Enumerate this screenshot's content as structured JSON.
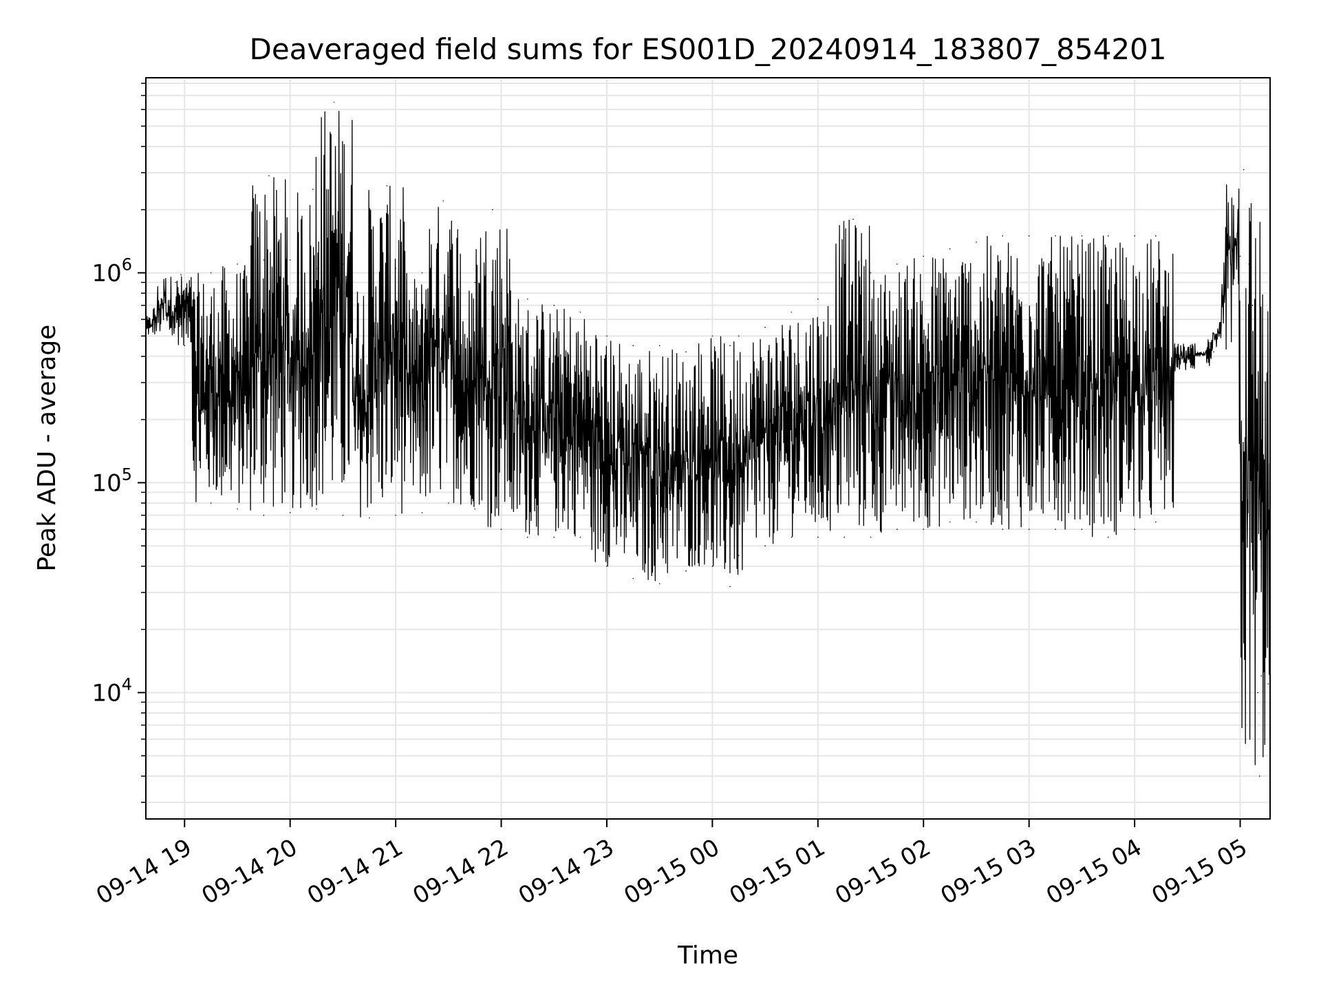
{
  "chart_data": {
    "type": "line",
    "title": "Deaveraged field sums for ES001D_20240914_183807_854201",
    "xlabel": "Time",
    "ylabel": "Peak ADU - average",
    "yscale": "log",
    "ylim": [
      2500,
      8500000
    ],
    "xlim": [
      "09-14 18:38",
      "09-15 05:17"
    ],
    "grid": true,
    "x_ticks": [
      "09-14 19",
      "09-14 20",
      "09-14 21",
      "09-14 22",
      "09-14 23",
      "09-15 00",
      "09-15 01",
      "09-15 02",
      "09-15 03",
      "09-15 04",
      "09-15 05"
    ],
    "y_ticks": [
      {
        "value": 10000,
        "base": "10",
        "exp": "4"
      },
      {
        "value": 100000,
        "base": "10",
        "exp": "5"
      },
      {
        "value": 1000000,
        "base": "10",
        "exp": "6"
      }
    ],
    "line_color": "#000000",
    "series": [
      {
        "name": "",
        "points": [
          [
            "09-14 18:38",
            500000
          ],
          [
            "09-14 18:45",
            620000
          ],
          [
            "09-14 18:52",
            700000
          ],
          [
            "09-14 18:55",
            900000
          ],
          [
            "09-14 18:58",
            980000
          ],
          [
            "09-14 19:00",
            450000
          ],
          [
            "09-14 19:15",
            1000000
          ],
          [
            "09-14 19:15",
            80000
          ],
          [
            "09-14 19:30",
            1100000
          ],
          [
            "09-14 19:30",
            75000
          ],
          [
            "09-14 19:45",
            1150000
          ],
          [
            "09-14 19:45",
            70000
          ],
          [
            "09-14 19:48",
            2900000
          ],
          [
            "09-14 20:00",
            1150000
          ],
          [
            "09-14 20:00",
            72000
          ],
          [
            "09-14 20:13",
            2500000
          ],
          [
            "09-14 20:15",
            1050000
          ],
          [
            "09-14 20:15",
            75000
          ],
          [
            "09-14 20:25",
            6500000
          ],
          [
            "09-14 20:30",
            1100000
          ],
          [
            "09-14 20:30",
            70000
          ],
          [
            "09-14 20:45",
            1100000
          ],
          [
            "09-14 20:45",
            68000
          ],
          [
            "09-14 21:00",
            1050000
          ],
          [
            "09-14 21:00",
            70000
          ],
          [
            "09-14 20:55",
            2600000
          ],
          [
            "09-14 21:15",
            1000000
          ],
          [
            "09-14 21:15",
            72000
          ],
          [
            "09-14 21:27",
            2200000
          ],
          [
            "09-14 21:30",
            950000
          ],
          [
            "09-14 21:30",
            80000
          ],
          [
            "09-14 21:45",
            900000
          ],
          [
            "09-14 21:45",
            75000
          ],
          [
            "09-14 21:55",
            2000000
          ],
          [
            "09-14 22:00",
            800000
          ],
          [
            "09-14 22:00",
            60000
          ],
          [
            "09-14 22:15",
            750000
          ],
          [
            "09-14 22:15",
            55000
          ],
          [
            "09-14 22:30",
            700000
          ],
          [
            "09-14 22:30",
            55000
          ],
          [
            "09-14 22:45",
            650000
          ],
          [
            "09-14 22:45",
            55000
          ],
          [
            "09-14 23:00",
            500000
          ],
          [
            "09-14 23:00",
            40000
          ],
          [
            "09-14 23:15",
            450000
          ],
          [
            "09-14 23:15",
            35000
          ],
          [
            "09-14 23:30",
            450000
          ],
          [
            "09-14 23:30",
            33000
          ],
          [
            "09-14 23:45",
            420000
          ],
          [
            "09-14 23:45",
            38000
          ],
          [
            "09-15 00:00",
            500000
          ],
          [
            "09-15 00:00",
            40000
          ],
          [
            "09-15 00:10",
            450000
          ],
          [
            "09-15 00:10",
            32000
          ],
          [
            "09-15 00:15",
            500000
          ],
          [
            "09-15 00:15",
            45000
          ],
          [
            "09-15 00:30",
            550000
          ],
          [
            "09-15 00:30",
            50000
          ],
          [
            "09-15 00:45",
            650000
          ],
          [
            "09-15 00:45",
            55000
          ],
          [
            "09-15 01:00",
            750000
          ],
          [
            "09-15 01:00",
            55000
          ],
          [
            "09-15 01:15",
            850000
          ],
          [
            "09-15 01:15",
            55000
          ],
          [
            "09-15 01:20",
            1800000
          ],
          [
            "09-15 01:30",
            1000000
          ],
          [
            "09-15 01:30",
            55000
          ],
          [
            "09-15 01:45",
            1100000
          ],
          [
            "09-15 01:45",
            60000
          ],
          [
            "09-15 02:00",
            1200000
          ],
          [
            "09-15 02:00",
            60000
          ],
          [
            "09-15 02:15",
            1300000
          ],
          [
            "09-15 02:15",
            65000
          ],
          [
            "09-15 02:30",
            1400000
          ],
          [
            "09-15 02:30",
            65000
          ],
          [
            "09-15 02:45",
            1500000
          ],
          [
            "09-15 02:45",
            60000
          ],
          [
            "09-15 03:00",
            1500000
          ],
          [
            "09-15 03:00",
            60000
          ],
          [
            "09-15 03:15",
            1500000
          ],
          [
            "09-15 03:15",
            60000
          ],
          [
            "09-15 03:30",
            1500000
          ],
          [
            "09-15 03:30",
            60000
          ],
          [
            "09-15 03:45",
            1500000
          ],
          [
            "09-15 03:45",
            55000
          ],
          [
            "09-15 04:00",
            1500000
          ],
          [
            "09-15 04:00",
            60000
          ],
          [
            "09-15 04:12",
            1500000
          ],
          [
            "09-15 04:12",
            65000
          ],
          [
            "09-15 04:13",
            400000
          ],
          [
            "09-15 04:30",
            400000
          ],
          [
            "09-15 04:45",
            420000
          ],
          [
            "09-15 04:55",
            600000
          ],
          [
            "09-15 05:00",
            1200000
          ],
          [
            "09-15 05:02",
            3100000
          ],
          [
            "09-15 05:05",
            1100000
          ],
          [
            "09-15 05:07",
            700000
          ],
          [
            "09-15 05:10",
            10000
          ],
          [
            "09-15 05:11",
            4000
          ],
          [
            "09-15 05:12",
            12000
          ],
          [
            "09-15 05:14",
            6000
          ],
          [
            "09-15 05:16",
            11000
          ],
          [
            "09-15 05:17",
            5000
          ]
        ]
      }
    ]
  }
}
